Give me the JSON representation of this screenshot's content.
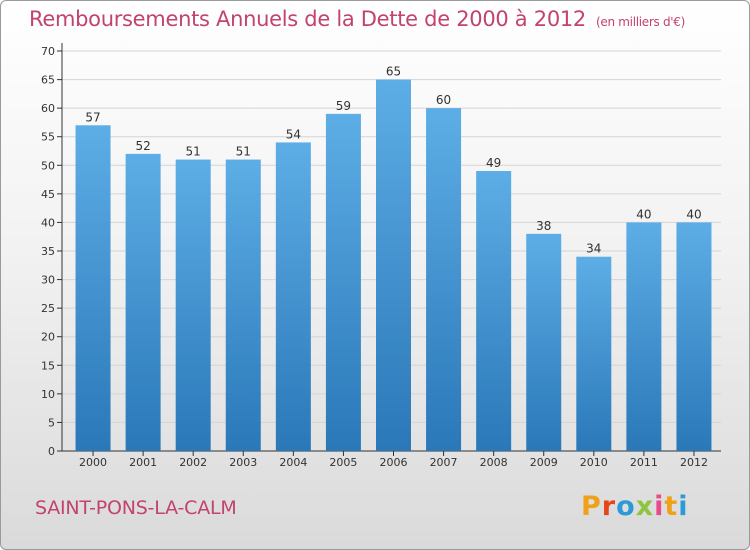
{
  "header": {
    "title": "Remboursements Annuels de la Dette de 2000 à 2012",
    "subtitle": "(en milliers d'€)"
  },
  "footer": {
    "city": "SAINT-PONS-LA-CALM",
    "logo_letters": [
      "P",
      "r",
      "o",
      "x",
      "i",
      "t",
      "i"
    ]
  },
  "colors": {
    "bar_top": "#5dade6",
    "bar_bottom": "#2a78b8",
    "title": "#c2436e"
  },
  "chart_data": {
    "type": "bar",
    "title": "Remboursements Annuels de la Dette de 2000 à 2012",
    "xlabel": "",
    "ylabel": "",
    "categories": [
      "2000",
      "2001",
      "2002",
      "2003",
      "2004",
      "2005",
      "2006",
      "2007",
      "2008",
      "2009",
      "2010",
      "2011",
      "2012"
    ],
    "values": [
      57,
      52,
      51,
      51,
      54,
      59,
      65,
      60,
      49,
      38,
      34,
      40,
      40
    ],
    "ylim": [
      0,
      70
    ],
    "yticks": [
      0,
      5,
      10,
      15,
      20,
      25,
      30,
      35,
      40,
      45,
      50,
      55,
      60,
      65,
      70
    ],
    "grid": true
  }
}
